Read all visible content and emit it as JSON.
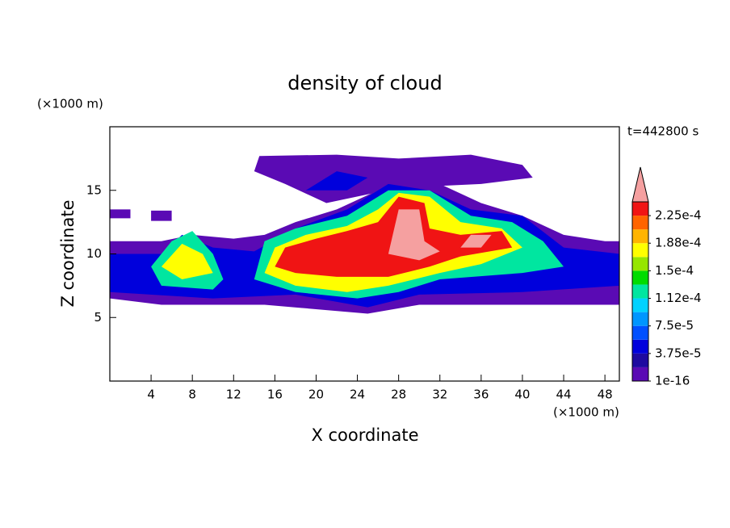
{
  "chart_data": {
    "type": "contour",
    "title": "density of cloud",
    "x_label": "X coordinate",
    "y_label": "Z coordinate",
    "x_unit": "(×1000 m)",
    "y_unit": "(×1000 m)",
    "annotation": "t=442800 s",
    "xlim": [
      0,
      49.4
    ],
    "xticks": [
      4,
      8,
      12,
      16,
      20,
      24,
      28,
      32,
      36,
      40,
      44,
      48
    ],
    "ylim": [
      0,
      20
    ],
    "yticks": [
      5,
      10,
      15
    ],
    "levels": [
      1e-16,
      1.875e-05,
      3.75e-05,
      5.625e-05,
      7.5e-05,
      9.375e-05,
      0.0001125,
      0.00013125,
      0.00015,
      0.00016875,
      0.0001875,
      0.00020625,
      0.000225,
      0.00024375
    ],
    "colors": [
      "#5a0ab4",
      "#1e0aa0",
      "#0000dc",
      "#0050ff",
      "#0096ff",
      "#00d2ff",
      "#00e6a0",
      "#00dc00",
      "#96e600",
      "#ffff00",
      "#ffb400",
      "#ff6400",
      "#f01414",
      "#f5a0a0"
    ],
    "colorbar_ticks": [
      {
        "value": 1e-16,
        "label": "1e-16"
      },
      {
        "value": 3.75e-05,
        "label": "3.75e-5"
      },
      {
        "value": 7.5e-05,
        "label": "7.5e-5"
      },
      {
        "value": 0.0001125,
        "label": "1.12e-4"
      },
      {
        "value": 0.00015,
        "label": "1.5e-4"
      },
      {
        "value": 0.0001875,
        "label": "1.88e-4"
      },
      {
        "value": 0.000225,
        "label": "2.25e-4"
      }
    ]
  }
}
